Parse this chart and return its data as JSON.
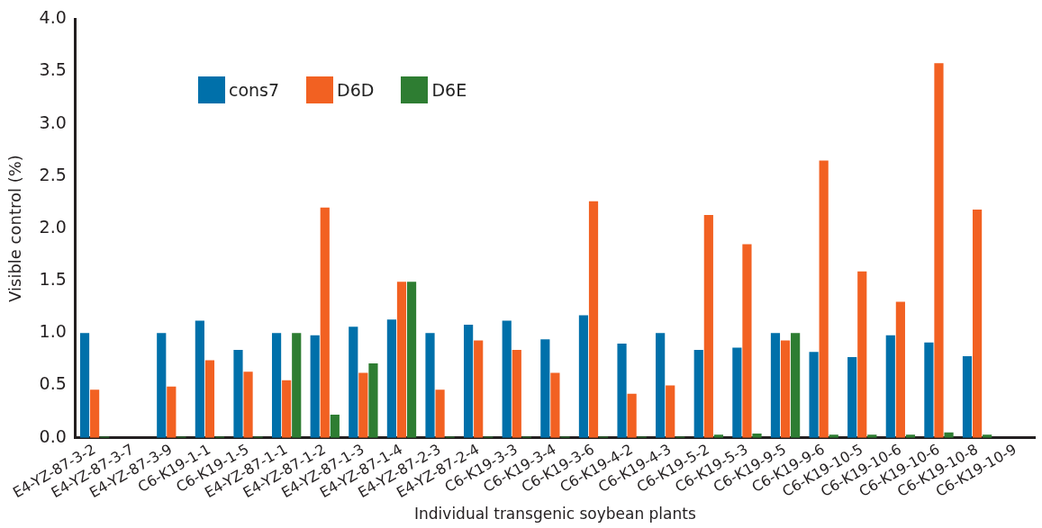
{
  "chart_data": {
    "type": "bar",
    "xlabel": "Individual transgenic soybean plants",
    "ylabel": "Visible control (%)",
    "categories": [
      "E4-YZ-87-3-2",
      "E4-YZ-87-3-7",
      "E4-YZ-87-3-9",
      "C6-K19-1-1",
      "C6-K19-1-5",
      "E4-YZ-87-1-1",
      "E4-YZ-87-1-2",
      "E4-YZ-87-1-3",
      "E4-YZ-87-1-4",
      "E4-YZ-87-2-3",
      "E4-YZ-87-2-4",
      "C6-K19-3-3",
      "C6-K19-3-4",
      "C6-K19-3-6",
      "C6-K19-4-2",
      "C6-K19-4-3",
      "C6-K19-5-2",
      "C6-K19-5-3",
      "C6-K19-9-5",
      "C6-K19-9-6",
      "C6-K19-10-5",
      "C6-K19-10-6",
      "C6-K19-10-6",
      "C6-K19-10-8",
      "C6-K19-10-9"
    ],
    "series": [
      {
        "name": "cons7",
        "color": "#0070aa",
        "values": [
          1.0,
          0,
          1.0,
          1.12,
          0.84,
          1.0,
          0.98,
          1.06,
          1.13,
          1.0,
          1.08,
          1.12,
          0.94,
          1.17,
          0.9,
          1.0,
          0.84,
          0.86,
          1.0,
          0.82,
          0.77,
          0.98,
          0.91,
          0.78,
          0
        ]
      },
      {
        "name": "D6D",
        "color": "#f26122",
        "values": [
          0.46,
          0,
          0.49,
          0.74,
          0.63,
          0.55,
          2.2,
          0.62,
          1.49,
          0.46,
          0.93,
          0.84,
          0.62,
          2.26,
          0.42,
          0.5,
          2.13,
          1.85,
          0.93,
          2.65,
          1.59,
          1.3,
          3.58,
          2.18,
          0
        ]
      },
      {
        "name": "D6E",
        "color": "#2e7d32",
        "values": [
          0.01,
          0,
          0.01,
          0.01,
          0.01,
          1.0,
          0.22,
          0.71,
          1.49,
          0.01,
          0.01,
          0.01,
          0.01,
          0.01,
          0.01,
          0.01,
          0.03,
          0.04,
          1.0,
          0.03,
          0.03,
          0.03,
          0.05,
          0.03,
          0
        ]
      }
    ],
    "ylim": [
      0,
      4
    ],
    "yticks": [
      {
        "value": 0,
        "label": "0.0"
      },
      {
        "value": 0.5,
        "label": "0.5"
      },
      {
        "value": 1,
        "label": "1.0"
      },
      {
        "value": 1.5,
        "label": "1.5"
      },
      {
        "value": 2,
        "label": "2.0"
      },
      {
        "value": 2.5,
        "label": "2.5"
      },
      {
        "value": 3,
        "label": "3.0"
      },
      {
        "value": 3.5,
        "label": "3.5"
      },
      {
        "value": 4,
        "label": "4.0"
      }
    ],
    "grid": false,
    "legend": "top left"
  }
}
